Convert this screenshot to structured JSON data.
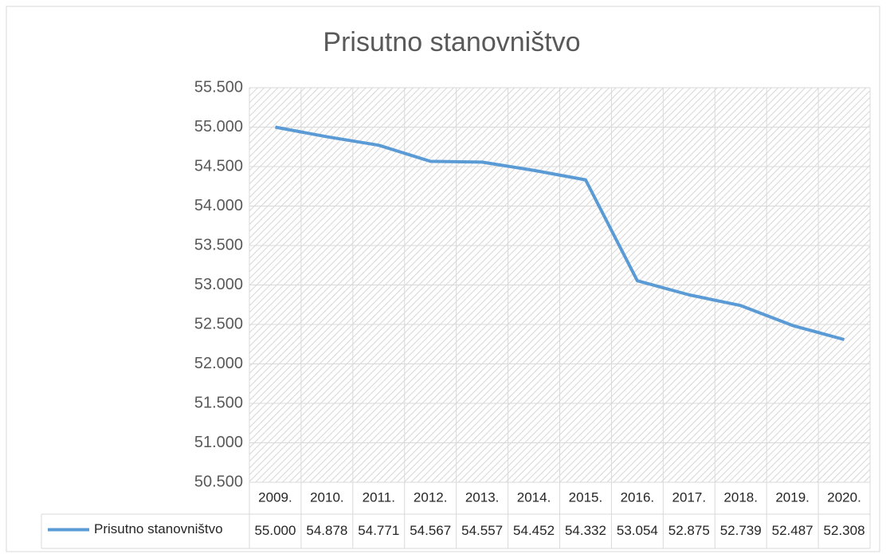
{
  "chart_data": {
    "type": "line",
    "title": "Prisutno stanovništvo",
    "categories": [
      "2009.",
      "2010.",
      "2011.",
      "2012.",
      "2013.",
      "2014.",
      "2015.",
      "2016.",
      "2017.",
      "2018.",
      "2019.",
      "2020."
    ],
    "series": [
      {
        "name": "Prisutno stanovništvo",
        "color": "#5b9bd5",
        "values": [
          55000,
          54878,
          54771,
          54567,
          54557,
          54452,
          54332,
          53054,
          52875,
          52739,
          52487,
          52308
        ],
        "value_labels": [
          "55.000",
          "54.878",
          "54.771",
          "54.567",
          "54.557",
          "54.452",
          "54.332",
          "53.054",
          "52.875",
          "52.739",
          "52.487",
          "52.308"
        ]
      }
    ],
    "ylim": [
      50500,
      55500
    ],
    "yticks": [
      {
        "value": 50500,
        "label": "50.500"
      },
      {
        "value": 51000,
        "label": "51.000"
      },
      {
        "value": 51500,
        "label": "51.500"
      },
      {
        "value": 52000,
        "label": "52.000"
      },
      {
        "value": 52500,
        "label": "52.500"
      },
      {
        "value": 53000,
        "label": "53.000"
      },
      {
        "value": 53500,
        "label": "53.500"
      },
      {
        "value": 54000,
        "label": "54.000"
      },
      {
        "value": 54500,
        "label": "54.500"
      },
      {
        "value": 55000,
        "label": "55.000"
      },
      {
        "value": 55500,
        "label": "55.500"
      }
    ],
    "grid": true
  }
}
